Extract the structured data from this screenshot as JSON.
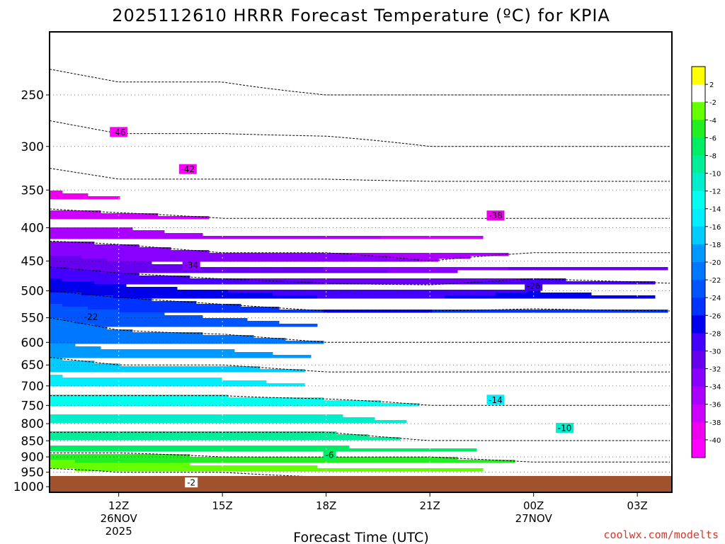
{
  "chart_data": {
    "type": "contour",
    "title": "2025112610 HRRR Forecast Temperature (ºC) for KPIA",
    "xlabel": "Forecast Time (UTC)",
    "ylabel": "",
    "credit": "coolwx.com/modelts",
    "x_ticks": [
      {
        "label": "12Z",
        "sub": [
          "26NOV",
          "2025"
        ]
      },
      {
        "label": "15Z",
        "sub": []
      },
      {
        "label": "18Z",
        "sub": []
      },
      {
        "label": "21Z",
        "sub": []
      },
      {
        "label": "00Z",
        "sub": [
          "27NOV"
        ]
      },
      {
        "label": "03Z",
        "sub": []
      }
    ],
    "x_hours": [
      12,
      15,
      18,
      21,
      24,
      27
    ],
    "x_range_hours": [
      10,
      28
    ],
    "y_axis": "pressure (hPa), log scale, inverted",
    "y_ticks": [
      250,
      300,
      350,
      400,
      450,
      500,
      550,
      600,
      650,
      700,
      750,
      800,
      850,
      900,
      950,
      1000
    ],
    "y_range": [
      200,
      1020
    ],
    "grid": true,
    "colorbar": {
      "levels": [
        2,
        -2,
        -4,
        -6,
        -8,
        -10,
        -12,
        -14,
        -16,
        -18,
        -20,
        -22,
        -24,
        -26,
        -28,
        -30,
        -32,
        -34,
        -36,
        -38,
        -40
      ],
      "colors": [
        "#ffff00",
        "#ffffff",
        "#66ff00",
        "#22ee22",
        "#00ee66",
        "#00ee99",
        "#00eecc",
        "#00ffee",
        "#00eeff",
        "#00ccff",
        "#0099ff",
        "#0077ff",
        "#0055ff",
        "#0033ff",
        "#0000ee",
        "#4400ff",
        "#6600ee",
        "#8800ff",
        "#aa00ff",
        "#cc00ff",
        "#ee00ee",
        "#ff00ff"
      ]
    },
    "temperature_profiles": [
      {
        "hour": 10,
        "levels": [
          [
            1000,
            1
          ],
          [
            950,
            -1
          ],
          [
            900,
            -5
          ],
          [
            850,
            -9
          ],
          [
            800,
            -11
          ],
          [
            750,
            -13
          ],
          [
            700,
            -15
          ],
          [
            650,
            -17
          ],
          [
            600,
            -20
          ],
          [
            550,
            -22
          ],
          [
            500,
            -26
          ],
          [
            450,
            -31
          ],
          [
            400,
            -36
          ],
          [
            350,
            -40
          ],
          [
            300,
            -44
          ],
          [
            250,
            -48
          ]
        ]
      },
      {
        "hour": 12,
        "levels": [
          [
            1000,
            0
          ],
          [
            950,
            -2
          ],
          [
            900,
            -5
          ],
          [
            850,
            -9
          ],
          [
            800,
            -11
          ],
          [
            750,
            -13
          ],
          [
            700,
            -15
          ],
          [
            650,
            -18
          ],
          [
            600,
            -21
          ],
          [
            550,
            -23
          ],
          [
            500,
            -27
          ],
          [
            450,
            -32
          ],
          [
            400,
            -36
          ],
          [
            350,
            -41
          ],
          [
            300,
            -45
          ],
          [
            250,
            -49
          ]
        ]
      },
      {
        "hour": 15,
        "levels": [
          [
            1000,
            0
          ],
          [
            950,
            -2
          ],
          [
            900,
            -6
          ],
          [
            850,
            -9
          ],
          [
            800,
            -11
          ],
          [
            750,
            -13
          ],
          [
            700,
            -15
          ],
          [
            650,
            -18
          ],
          [
            600,
            -21
          ],
          [
            550,
            -24
          ],
          [
            500,
            -28
          ],
          [
            450,
            -33
          ],
          [
            400,
            -37
          ],
          [
            350,
            -41
          ],
          [
            300,
            -45
          ],
          [
            250,
            -49
          ]
        ]
      },
      {
        "hour": 18,
        "levels": [
          [
            1000,
            0
          ],
          [
            950,
            -3
          ],
          [
            900,
            -6
          ],
          [
            850,
            -9
          ],
          [
            800,
            -11
          ],
          [
            750,
            -13
          ],
          [
            700,
            -16
          ],
          [
            650,
            -19
          ],
          [
            600,
            -22
          ],
          [
            550,
            -25
          ],
          [
            500,
            -29
          ],
          [
            450,
            -33
          ],
          [
            400,
            -37
          ],
          [
            350,
            -41
          ],
          [
            300,
            -45
          ],
          [
            250,
            -50
          ]
        ]
      },
      {
        "hour": 21,
        "levels": [
          [
            1000,
            0
          ],
          [
            950,
            -3
          ],
          [
            900,
            -6
          ],
          [
            850,
            -10
          ],
          [
            800,
            -12
          ],
          [
            750,
            -14
          ],
          [
            700,
            -16
          ],
          [
            650,
            -19
          ],
          [
            600,
            -22
          ],
          [
            550,
            -25
          ],
          [
            500,
            -29
          ],
          [
            450,
            -34
          ],
          [
            400,
            -37
          ],
          [
            350,
            -41
          ],
          [
            300,
            -46
          ],
          [
            250,
            -50
          ]
        ]
      },
      {
        "hour": 24,
        "levels": [
          [
            1000,
            -1
          ],
          [
            950,
            -4
          ],
          [
            900,
            -7
          ],
          [
            850,
            -10
          ],
          [
            800,
            -12
          ],
          [
            750,
            -14
          ],
          [
            700,
            -16
          ],
          [
            650,
            -19
          ],
          [
            600,
            -22
          ],
          [
            550,
            -25
          ],
          [
            500,
            -28
          ],
          [
            450,
            -33
          ],
          [
            400,
            -37
          ],
          [
            350,
            -41
          ],
          [
            300,
            -46
          ],
          [
            250,
            -50
          ]
        ]
      },
      {
        "hour": 28,
        "levels": [
          [
            1000,
            -2
          ],
          [
            950,
            -4
          ],
          [
            900,
            -7
          ],
          [
            850,
            -10
          ],
          [
            800,
            -12
          ],
          [
            750,
            -14
          ],
          [
            700,
            -16
          ],
          [
            650,
            -19
          ],
          [
            600,
            -22
          ],
          [
            550,
            -25
          ],
          [
            500,
            -29
          ],
          [
            450,
            -33
          ],
          [
            400,
            -37
          ],
          [
            350,
            -41
          ],
          [
            300,
            -46
          ],
          [
            250,
            -50
          ]
        ]
      }
    ],
    "contour_labels": [
      {
        "text": "-46",
        "hour": 12.0,
        "p": 285
      },
      {
        "text": "-42",
        "hour": 14.0,
        "p": 325
      },
      {
        "text": "-38",
        "hour": 22.9,
        "p": 383
      },
      {
        "text": "-34",
        "hour": 14.1,
        "p": 456
      },
      {
        "text": "-26",
        "hour": 24.0,
        "p": 491
      },
      {
        "text": "-22",
        "hour": 11.2,
        "p": 548
      },
      {
        "text": "-14",
        "hour": 22.9,
        "p": 735
      },
      {
        "text": "-10",
        "hour": 24.9,
        "p": 812
      },
      {
        "text": "-6",
        "hour": 18.1,
        "p": 893
      },
      {
        "text": "-2",
        "hour": 14.1,
        "p": 985
      }
    ]
  }
}
